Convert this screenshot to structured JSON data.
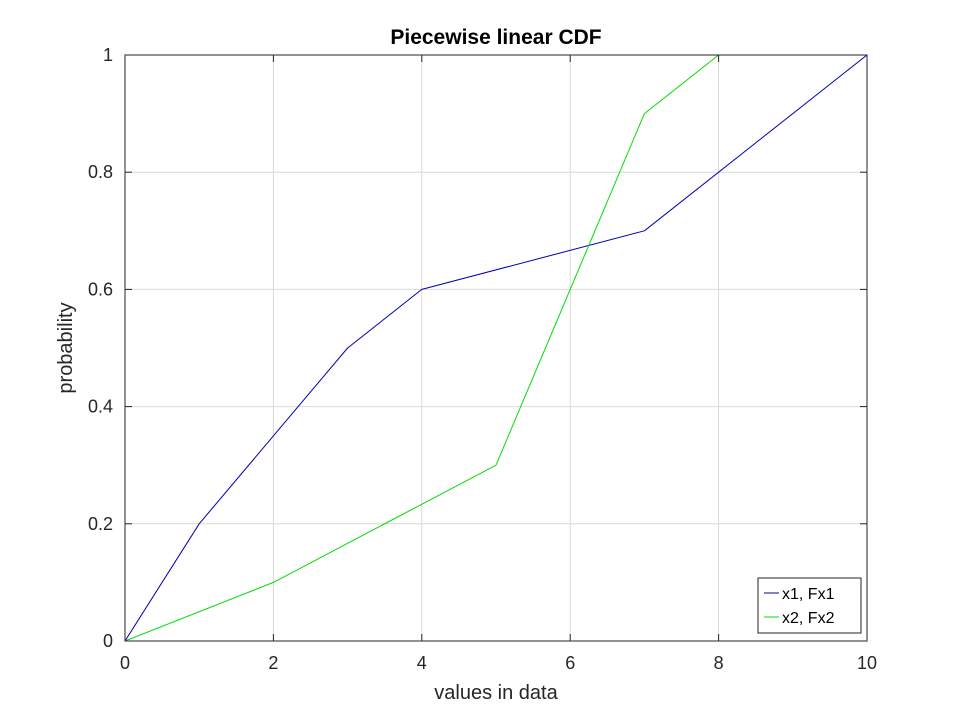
{
  "chart_data": {
    "type": "line",
    "title": "Piecewise linear CDF",
    "xlabel": "values in data",
    "ylabel": "probability",
    "xlim": [
      0,
      10
    ],
    "ylim": [
      0,
      1
    ],
    "xticks": [
      0,
      2,
      4,
      6,
      8,
      10
    ],
    "xtick_labels": [
      "0",
      "2",
      "4",
      "6",
      "8",
      "10"
    ],
    "yticks": [
      0,
      0.2,
      0.4,
      0.6,
      0.8,
      1
    ],
    "ytick_labels": [
      "0",
      "0.2",
      "0.4",
      "0.6",
      "0.8",
      "1"
    ],
    "grid": true,
    "legend_position": "bottom-right",
    "series": [
      {
        "name": "x1, Fx1",
        "color": "#0000b3",
        "x": [
          0,
          1,
          3,
          4,
          7,
          10
        ],
        "y": [
          0,
          0.2,
          0.5,
          0.6,
          0.7,
          1
        ]
      },
      {
        "name": "x2, Fx2",
        "color": "#00dd00",
        "x": [
          0,
          2,
          5,
          7,
          8,
          10
        ],
        "y": [
          0,
          0.1,
          0.3,
          0.9,
          1,
          1
        ]
      }
    ]
  }
}
